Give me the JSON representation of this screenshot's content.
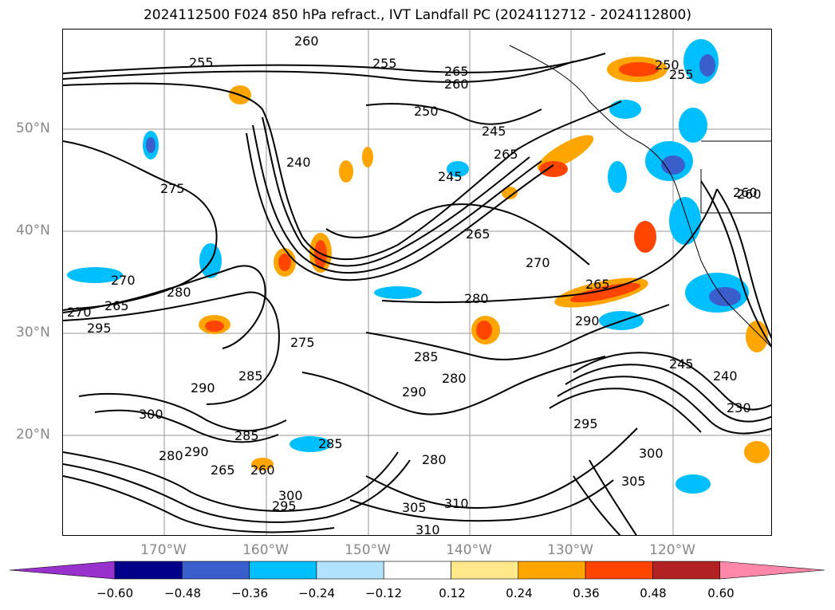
{
  "title": "2024112500 F024 850 hPa refract., IVT Landfall PC (2024112712 - 2024112800)",
  "lat_labels": [
    "50°N",
    "40°N",
    "30°N",
    "20°N"
  ],
  "lon_labels": [
    "170°W",
    "160°W",
    "150°W",
    "140°W",
    "130°W",
    "120°W"
  ],
  "colorbar": {
    "ticks": [
      "−0.60",
      "−0.48",
      "−0.36",
      "−0.24",
      "−0.12",
      "0.12",
      "0.24",
      "0.36",
      "0.48",
      "0.60"
    ],
    "colors": [
      "#9932cc",
      "#00008b",
      "#3a5fcd",
      "#00bfff",
      "#b0e2ff",
      "#ffffff",
      "#ffe98a",
      "#ffa500",
      "#ff4500",
      "#b22222",
      "#ff88aa"
    ]
  },
  "contour_labels": [
    "255",
    "255",
    "260",
    "265",
    "260",
    "250",
    "250",
    "255",
    "245",
    "265",
    "240",
    "245",
    "275",
    "260",
    "265",
    "270",
    "265",
    "270",
    "280",
    "265",
    "290",
    "280",
    "275",
    "270",
    "285",
    "280",
    "290",
    "285",
    "290",
    "295",
    "300",
    "285",
    "280",
    "290",
    "265",
    "260",
    "285",
    "280",
    "295",
    "300",
    "305",
    "310",
    "310",
    "295",
    "305",
    "300",
    "230",
    "240",
    "245",
    "260"
  ]
}
